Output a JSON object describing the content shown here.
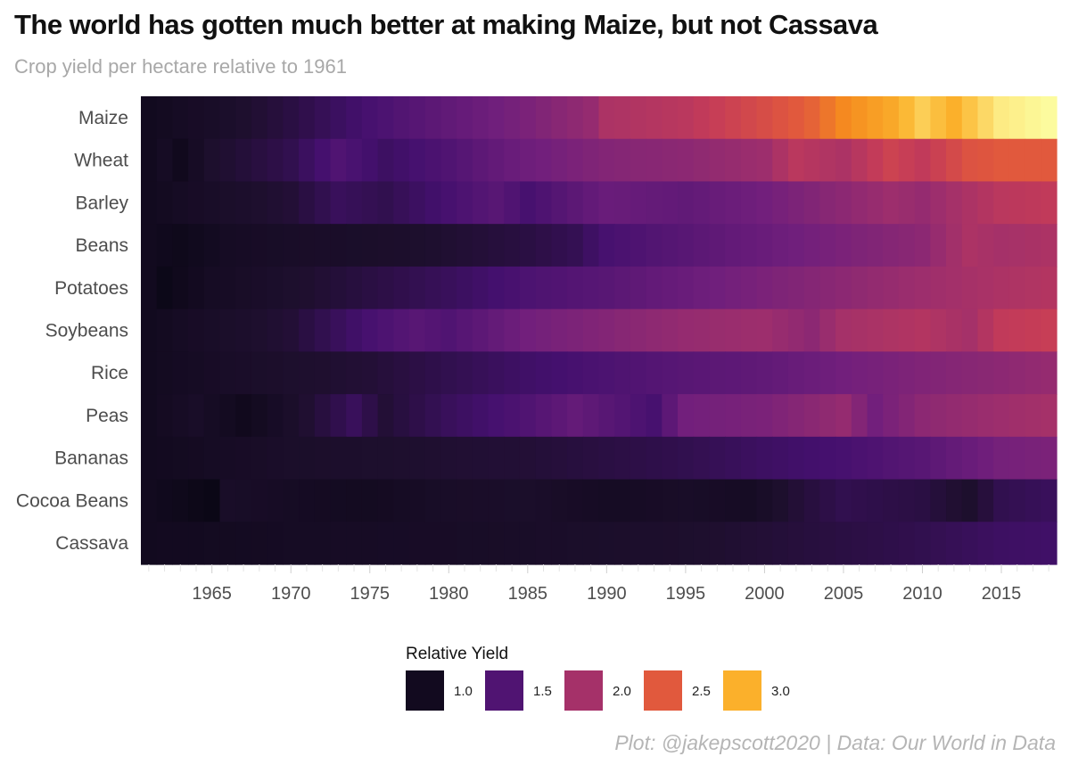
{
  "title": "The world has gotten much better at making Maize, but not Cassava",
  "subtitle": "Crop yield per hectare relative to 1961",
  "caption": "Plot: @jakepscott2020 | Data: Our World in Data",
  "chart_data": {
    "type": "heatmap",
    "x_start": 1961,
    "x_end": 2018,
    "x_ticks": [
      1965,
      1970,
      1975,
      1980,
      1985,
      1990,
      1995,
      2000,
      2005,
      2010,
      2015
    ],
    "crops": [
      "Maize",
      "Wheat",
      "Barley",
      "Beans",
      "Potatoes",
      "Soybeans",
      "Rice",
      "Peas",
      "Bananas",
      "Cocoa Beans",
      "Cassava"
    ],
    "series": [
      {
        "name": "Maize",
        "anchors": [
          [
            1961,
            1.0
          ],
          [
            1965,
            1.1
          ],
          [
            1970,
            1.25
          ],
          [
            1975,
            1.45
          ],
          [
            1980,
            1.6
          ],
          [
            1985,
            1.75
          ],
          [
            1989,
            1.9
          ],
          [
            1990,
            2.05
          ],
          [
            1995,
            2.15
          ],
          [
            2000,
            2.4
          ],
          [
            2003,
            2.55
          ],
          [
            2005,
            2.75
          ],
          [
            2008,
            2.95
          ],
          [
            2010,
            3.15
          ],
          [
            2012,
            3.0
          ],
          [
            2015,
            3.3
          ],
          [
            2018,
            3.5
          ]
        ]
      },
      {
        "name": "Wheat",
        "anchors": [
          [
            1961,
            1.0
          ],
          [
            1962,
            1.05
          ],
          [
            1963,
            0.98
          ],
          [
            1965,
            1.15
          ],
          [
            1970,
            1.3
          ],
          [
            1973,
            1.5
          ],
          [
            1976,
            1.38
          ],
          [
            1980,
            1.5
          ],
          [
            1984,
            1.65
          ],
          [
            1990,
            1.8
          ],
          [
            1995,
            1.85
          ],
          [
            2000,
            1.95
          ],
          [
            2002,
            2.15
          ],
          [
            2005,
            2.05
          ],
          [
            2008,
            2.3
          ],
          [
            2010,
            2.2
          ],
          [
            2013,
            2.45
          ],
          [
            2015,
            2.5
          ],
          [
            2018,
            2.5
          ]
        ]
      },
      {
        "name": "Barley",
        "anchors": [
          [
            1961,
            1.0
          ],
          [
            1965,
            1.1
          ],
          [
            1970,
            1.2
          ],
          [
            1973,
            1.35
          ],
          [
            1976,
            1.3
          ],
          [
            1980,
            1.45
          ],
          [
            1983,
            1.55
          ],
          [
            1985,
            1.45
          ],
          [
            1990,
            1.65
          ],
          [
            1995,
            1.6
          ],
          [
            2000,
            1.7
          ],
          [
            2005,
            1.85
          ],
          [
            2008,
            1.95
          ],
          [
            2010,
            1.9
          ],
          [
            2013,
            2.05
          ],
          [
            2015,
            2.15
          ],
          [
            2018,
            2.2
          ]
        ]
      },
      {
        "name": "Beans",
        "anchors": [
          [
            1961,
            1.0
          ],
          [
            1963,
            0.95
          ],
          [
            1966,
            1.05
          ],
          [
            1970,
            1.1
          ],
          [
            1975,
            1.12
          ],
          [
            1980,
            1.18
          ],
          [
            1985,
            1.25
          ],
          [
            1988,
            1.32
          ],
          [
            1990,
            1.45
          ],
          [
            1995,
            1.55
          ],
          [
            2000,
            1.65
          ],
          [
            2005,
            1.75
          ],
          [
            2010,
            1.85
          ],
          [
            2013,
            2.05
          ],
          [
            2015,
            2.0
          ],
          [
            2018,
            2.05
          ]
        ]
      },
      {
        "name": "Potatoes",
        "anchors": [
          [
            1961,
            1.0
          ],
          [
            1962,
            0.92
          ],
          [
            1965,
            1.05
          ],
          [
            1970,
            1.15
          ],
          [
            1975,
            1.25
          ],
          [
            1980,
            1.35
          ],
          [
            1985,
            1.48
          ],
          [
            1990,
            1.55
          ],
          [
            1995,
            1.65
          ],
          [
            2000,
            1.75
          ],
          [
            2005,
            1.85
          ],
          [
            2010,
            1.95
          ],
          [
            2015,
            2.05
          ],
          [
            2018,
            2.1
          ]
        ]
      },
      {
        "name": "Soybeans",
        "anchors": [
          [
            1961,
            1.0
          ],
          [
            1965,
            1.1
          ],
          [
            1970,
            1.2
          ],
          [
            1975,
            1.45
          ],
          [
            1978,
            1.55
          ],
          [
            1980,
            1.5
          ],
          [
            1985,
            1.7
          ],
          [
            1990,
            1.8
          ],
          [
            1995,
            1.9
          ],
          [
            2000,
            1.95
          ],
          [
            2003,
            1.85
          ],
          [
            2005,
            2.0
          ],
          [
            2010,
            2.1
          ],
          [
            2013,
            2.0
          ],
          [
            2015,
            2.2
          ],
          [
            2018,
            2.25
          ]
        ]
      },
      {
        "name": "Rice",
        "anchors": [
          [
            1961,
            1.0
          ],
          [
            1965,
            1.08
          ],
          [
            1970,
            1.15
          ],
          [
            1975,
            1.2
          ],
          [
            1980,
            1.3
          ],
          [
            1985,
            1.4
          ],
          [
            1990,
            1.48
          ],
          [
            1995,
            1.55
          ],
          [
            2000,
            1.6
          ],
          [
            2005,
            1.7
          ],
          [
            2010,
            1.78
          ],
          [
            2015,
            1.85
          ],
          [
            2018,
            1.9
          ]
        ]
      },
      {
        "name": "Peas",
        "anchors": [
          [
            1961,
            1.0
          ],
          [
            1964,
            1.1
          ],
          [
            1967,
            0.98
          ],
          [
            1970,
            1.12
          ],
          [
            1974,
            1.35
          ],
          [
            1976,
            1.2
          ],
          [
            1980,
            1.35
          ],
          [
            1985,
            1.5
          ],
          [
            1988,
            1.62
          ],
          [
            1990,
            1.55
          ],
          [
            1993,
            1.45
          ],
          [
            1995,
            1.7
          ],
          [
            2000,
            1.75
          ],
          [
            2005,
            1.9
          ],
          [
            2007,
            1.7
          ],
          [
            2010,
            1.85
          ],
          [
            2015,
            1.95
          ],
          [
            2018,
            2.0
          ]
        ]
      },
      {
        "name": "Bananas",
        "anchors": [
          [
            1961,
            1.0
          ],
          [
            1965,
            1.05
          ],
          [
            1970,
            1.12
          ],
          [
            1975,
            1.15
          ],
          [
            1980,
            1.18
          ],
          [
            1985,
            1.2
          ],
          [
            1990,
            1.25
          ],
          [
            1995,
            1.3
          ],
          [
            2000,
            1.38
          ],
          [
            2005,
            1.45
          ],
          [
            2010,
            1.55
          ],
          [
            2013,
            1.65
          ],
          [
            2015,
            1.72
          ],
          [
            2018,
            1.75
          ]
        ]
      },
      {
        "name": "Cocoa Beans",
        "anchors": [
          [
            1961,
            1.0
          ],
          [
            1965,
            0.9
          ],
          [
            1966,
            1.1
          ],
          [
            1970,
            1.05
          ],
          [
            1975,
            1.02
          ],
          [
            1980,
            1.1
          ],
          [
            1985,
            1.12
          ],
          [
            1990,
            1.05
          ],
          [
            1995,
            1.1
          ],
          [
            1999,
            1.05
          ],
          [
            2002,
            1.2
          ],
          [
            2005,
            1.3
          ],
          [
            2010,
            1.25
          ],
          [
            2013,
            1.15
          ],
          [
            2015,
            1.3
          ],
          [
            2018,
            1.35
          ]
        ]
      },
      {
        "name": "Cassava",
        "anchors": [
          [
            1961,
            1.0
          ],
          [
            1965,
            1.02
          ],
          [
            1970,
            1.05
          ],
          [
            1975,
            1.07
          ],
          [
            1980,
            1.08
          ],
          [
            1985,
            1.1
          ],
          [
            1990,
            1.13
          ],
          [
            1995,
            1.15
          ],
          [
            2000,
            1.2
          ],
          [
            2005,
            1.25
          ],
          [
            2010,
            1.3
          ],
          [
            2015,
            1.38
          ],
          [
            2018,
            1.4
          ]
        ]
      }
    ],
    "legend": {
      "title": "Relative Yield",
      "items": [
        {
          "label": "1.0",
          "value": 1.0
        },
        {
          "label": "1.5",
          "value": 1.5
        },
        {
          "label": "2.0",
          "value": 2.0
        },
        {
          "label": "2.5",
          "value": 2.5
        },
        {
          "label": "3.0",
          "value": 3.0
        }
      ]
    },
    "color_scale": {
      "name": "inferno",
      "domain": [
        0.9,
        3.55
      ],
      "stops": [
        "#0b0716",
        "#1e0f2e",
        "#44106e",
        "#711f7c",
        "#9f2f6c",
        "#c43b58",
        "#e0573e",
        "#f58a1f",
        "#fbb32c",
        "#fdea82",
        "#fcffa4"
      ]
    }
  }
}
